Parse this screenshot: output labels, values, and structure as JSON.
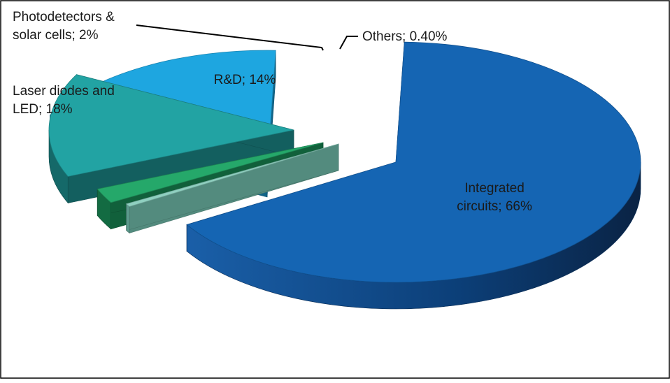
{
  "chart_data": {
    "type": "pie",
    "style": "3d-exploded",
    "title": "",
    "slices": [
      {
        "name": "Integrated circuits",
        "value": 66,
        "label": "Integrated circuits; 66%",
        "label_lines": [
          "Integrated",
          "circuits; 66%"
        ],
        "color": "#1565b3",
        "side_color": "#0b3f7a"
      },
      {
        "name": "Others",
        "value": 0.4,
        "label": "Others; 0.40%",
        "label_lines": [
          "Others; 0.40%"
        ],
        "color": "#8fd0c0",
        "side_color": "#5c9a8c"
      },
      {
        "name": "Photodetectors & solar cells",
        "value": 2,
        "label": "Photodetectors & solar cells; 2%",
        "label_lines": [
          "Photodetectors &",
          "solar cells; 2%"
        ],
        "color": "#25a86a",
        "side_color": "#136b42"
      },
      {
        "name": "R&D",
        "value": 14,
        "label": "R&D; 14%",
        "label_lines": [
          "R&D; 14%"
        ],
        "color": "#22a3a3",
        "side_color": "#156969"
      },
      {
        "name": "Laser diodes and LED",
        "value": 18,
        "label": "Laser diodes and LED; 18%",
        "label_lines": [
          "Laser diodes and",
          "LED; 18%"
        ],
        "color": "#1ea6e0",
        "side_color": "#136f96"
      }
    ]
  }
}
